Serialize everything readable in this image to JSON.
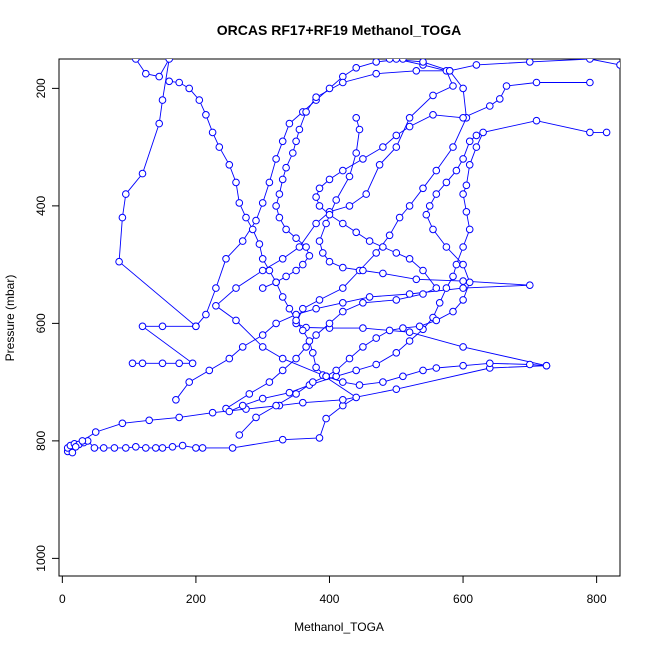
{
  "chart_data": {
    "type": "line",
    "title": "ORCAS RF17+RF19 Methanol_TOGA",
    "xlabel": "Methanol_TOGA",
    "ylabel": "Pressure (mbar)",
    "xlim": [
      -5,
      835
    ],
    "ylim": [
      1030,
      150
    ],
    "y_reversed": true,
    "x_ticks": [
      0,
      200,
      400,
      600,
      800
    ],
    "y_ticks": [
      200,
      400,
      600,
      800,
      1000
    ],
    "tick_labels_x": [
      "0",
      "200",
      "400",
      "600",
      "800"
    ],
    "tick_labels_y": [
      "200",
      "400",
      "600",
      "800",
      "1000"
    ],
    "grid": false,
    "colors": {
      "series": "#0000ff"
    },
    "series": [
      {
        "values": [
          [
            8,
            818
          ],
          [
            8,
            812
          ],
          [
            12,
            808
          ],
          [
            18,
            805
          ],
          [
            25,
            806
          ],
          [
            32,
            803
          ],
          [
            38,
            800
          ],
          [
            48,
            812
          ],
          [
            62,
            812
          ],
          [
            78,
            812
          ],
          [
            95,
            812
          ],
          [
            110,
            810
          ],
          [
            125,
            812
          ],
          [
            140,
            812
          ],
          [
            150,
            812
          ],
          [
            165,
            810
          ],
          [
            180,
            808
          ],
          [
            200,
            812
          ],
          [
            210,
            812
          ],
          [
            255,
            812
          ],
          [
            330,
            798
          ],
          [
            385,
            795
          ],
          [
            395,
            762
          ],
          [
            420,
            740
          ],
          [
            440,
            726
          ],
          [
            390,
            688
          ],
          [
            330,
            660
          ],
          [
            300,
            640
          ],
          [
            260,
            595
          ],
          [
            230,
            570
          ],
          [
            260,
            540
          ],
          [
            300,
            510
          ],
          [
            330,
            490
          ],
          [
            355,
            470
          ],
          [
            380,
            430
          ],
          [
            400,
            410
          ],
          [
            430,
            400
          ],
          [
            455,
            380
          ],
          [
            475,
            330
          ],
          [
            500,
            300
          ],
          [
            520,
            250
          ],
          [
            555,
            212
          ],
          [
            585,
            196
          ],
          [
            575,
            170
          ],
          [
            540,
            160
          ],
          [
            500,
            150
          ]
        ]
      },
      {
        "values": [
          [
            15,
            820
          ],
          [
            20,
            810
          ],
          [
            30,
            800
          ],
          [
            50,
            785
          ],
          [
            90,
            770
          ],
          [
            130,
            765
          ],
          [
            175,
            760
          ],
          [
            225,
            752
          ],
          [
            275,
            746
          ],
          [
            325,
            740
          ],
          [
            360,
            735
          ],
          [
            420,
            730
          ],
          [
            500,
            712
          ],
          [
            640,
            676
          ],
          [
            725,
            672
          ],
          [
            600,
            640
          ],
          [
            520,
            615
          ],
          [
            450,
            608
          ],
          [
            400,
            608
          ],
          [
            365,
            607
          ],
          [
            350,
            600
          ],
          [
            360,
            575
          ],
          [
            385,
            560
          ],
          [
            420,
            540
          ],
          [
            445,
            510
          ],
          [
            470,
            480
          ],
          [
            490,
            450
          ],
          [
            505,
            420
          ],
          [
            520,
            400
          ],
          [
            540,
            370
          ],
          [
            560,
            340
          ],
          [
            585,
            300
          ],
          [
            605,
            250
          ],
          [
            600,
            200
          ],
          [
            580,
            170
          ],
          [
            540,
            155
          ],
          [
            490,
            150
          ]
        ]
      },
      {
        "values": [
          [
            105,
            668
          ],
          [
            120,
            668
          ],
          [
            150,
            668
          ],
          [
            175,
            668
          ],
          [
            195,
            668
          ],
          [
            120,
            605
          ],
          [
            150,
            605
          ],
          [
            200,
            605
          ],
          [
            85,
            495
          ],
          [
            90,
            420
          ],
          [
            95,
            380
          ],
          [
            120,
            345
          ],
          [
            145,
            260
          ],
          [
            150,
            220
          ],
          [
            160,
            150
          ],
          [
            145,
            180
          ],
          [
            125,
            175
          ],
          [
            110,
            150
          ]
        ]
      },
      {
        "values": [
          [
            200,
            605
          ],
          [
            215,
            585
          ],
          [
            230,
            540
          ],
          [
            245,
            490
          ],
          [
            270,
            460
          ],
          [
            290,
            425
          ],
          [
            300,
            395
          ],
          [
            310,
            360
          ],
          [
            320,
            320
          ],
          [
            330,
            290
          ],
          [
            340,
            260
          ],
          [
            360,
            240
          ],
          [
            380,
            220
          ],
          [
            400,
            200
          ],
          [
            420,
            180
          ],
          [
            440,
            165
          ],
          [
            470,
            155
          ],
          [
            510,
            150
          ]
        ]
      },
      {
        "values": [
          [
            170,
            730
          ],
          [
            190,
            700
          ],
          [
            220,
            680
          ],
          [
            250,
            660
          ],
          [
            270,
            640
          ],
          [
            300,
            620
          ],
          [
            320,
            600
          ],
          [
            350,
            585
          ],
          [
            380,
            575
          ],
          [
            420,
            565
          ],
          [
            460,
            555
          ],
          [
            520,
            550
          ],
          [
            600,
            540
          ],
          [
            700,
            535
          ],
          [
            600,
            528
          ],
          [
            530,
            525
          ],
          [
            480,
            515
          ],
          [
            450,
            510
          ],
          [
            420,
            505
          ],
          [
            400,
            495
          ],
          [
            390,
            480
          ],
          [
            385,
            460
          ],
          [
            395,
            430
          ],
          [
            410,
            390
          ],
          [
            430,
            350
          ],
          [
            440,
            310
          ],
          [
            445,
            270
          ],
          [
            440,
            250
          ]
        ]
      },
      {
        "values": [
          [
            245,
            745
          ],
          [
            280,
            720
          ],
          [
            310,
            700
          ],
          [
            330,
            680
          ],
          [
            350,
            660
          ],
          [
            365,
            640
          ],
          [
            380,
            620
          ],
          [
            400,
            600
          ],
          [
            420,
            580
          ],
          [
            450,
            565
          ],
          [
            500,
            560
          ],
          [
            540,
            550
          ],
          [
            560,
            540
          ],
          [
            540,
            510
          ],
          [
            520,
            490
          ],
          [
            500,
            480
          ],
          [
            480,
            470
          ],
          [
            460,
            460
          ],
          [
            440,
            445
          ],
          [
            420,
            430
          ],
          [
            400,
            415
          ],
          [
            385,
            400
          ],
          [
            380,
            385
          ],
          [
            385,
            370
          ],
          [
            400,
            355
          ],
          [
            420,
            340
          ],
          [
            450,
            320
          ],
          [
            480,
            300
          ],
          [
            500,
            280
          ],
          [
            520,
            265
          ],
          [
            555,
            245
          ],
          [
            600,
            250
          ],
          [
            640,
            230
          ],
          [
            655,
            218
          ],
          [
            665,
            196
          ],
          [
            710,
            190
          ],
          [
            790,
            190
          ]
        ]
      },
      {
        "values": [
          [
            250,
            750
          ],
          [
            270,
            740
          ],
          [
            300,
            728
          ],
          [
            340,
            718
          ],
          [
            370,
            705
          ],
          [
            410,
            690
          ],
          [
            440,
            680
          ],
          [
            470,
            670
          ],
          [
            500,
            650
          ],
          [
            520,
            630
          ],
          [
            540,
            610
          ],
          [
            555,
            590
          ],
          [
            565,
            565
          ],
          [
            575,
            540
          ],
          [
            585,
            520
          ],
          [
            590,
            500
          ],
          [
            600,
            470
          ],
          [
            610,
            440
          ],
          [
            605,
            410
          ],
          [
            600,
            380
          ],
          [
            605,
            365
          ],
          [
            610,
            330
          ],
          [
            620,
            300
          ],
          [
            630,
            275
          ],
          [
            710,
            255
          ],
          [
            790,
            275
          ],
          [
            815,
            275
          ]
        ]
      },
      {
        "values": [
          [
            265,
            790
          ],
          [
            290,
            760
          ],
          [
            320,
            740
          ],
          [
            350,
            720
          ],
          [
            375,
            700
          ],
          [
            395,
            690
          ],
          [
            410,
            680
          ],
          [
            430,
            660
          ],
          [
            450,
            640
          ],
          [
            470,
            625
          ],
          [
            490,
            612
          ],
          [
            510,
            608
          ],
          [
            535,
            605
          ],
          [
            560,
            595
          ],
          [
            585,
            580
          ],
          [
            600,
            560
          ],
          [
            610,
            530
          ],
          [
            600,
            500
          ],
          [
            575,
            470
          ],
          [
            555,
            440
          ],
          [
            545,
            415
          ],
          [
            550,
            400
          ],
          [
            560,
            380
          ],
          [
            575,
            360
          ],
          [
            590,
            340
          ],
          [
            600,
            320
          ],
          [
            610,
            290
          ],
          [
            620,
            280
          ]
        ]
      },
      {
        "values": [
          [
            300,
            540
          ],
          [
            320,
            530
          ],
          [
            335,
            520
          ],
          [
            350,
            510
          ],
          [
            360,
            500
          ],
          [
            370,
            485
          ],
          [
            365,
            470
          ],
          [
            350,
            455
          ],
          [
            335,
            440
          ],
          [
            325,
            420
          ],
          [
            320,
            400
          ],
          [
            325,
            380
          ],
          [
            330,
            355
          ],
          [
            335,
            335
          ],
          [
            345,
            310
          ],
          [
            350,
            290
          ],
          [
            355,
            270
          ],
          [
            365,
            240
          ],
          [
            380,
            215
          ],
          [
            420,
            190
          ],
          [
            470,
            175
          ],
          [
            530,
            170
          ],
          [
            580,
            170
          ],
          [
            620,
            160
          ],
          [
            700,
            155
          ],
          [
            790,
            150
          ],
          [
            835,
            160
          ]
        ]
      },
      {
        "values": [
          [
            160,
            188
          ],
          [
            175,
            190
          ],
          [
            190,
            200
          ],
          [
            205,
            220
          ],
          [
            215,
            245
          ],
          [
            225,
            275
          ],
          [
            235,
            300
          ],
          [
            250,
            330
          ],
          [
            260,
            360
          ],
          [
            265,
            395
          ],
          [
            275,
            420
          ],
          [
            285,
            440
          ],
          [
            295,
            465
          ],
          [
            300,
            490
          ],
          [
            310,
            510
          ],
          [
            320,
            530
          ],
          [
            330,
            555
          ],
          [
            340,
            575
          ],
          [
            350,
            595
          ],
          [
            360,
            612
          ],
          [
            370,
            630
          ],
          [
            375,
            650
          ],
          [
            380,
            675
          ],
          [
            395,
            690
          ],
          [
            420,
            700
          ],
          [
            445,
            705
          ],
          [
            480,
            700
          ],
          [
            510,
            690
          ],
          [
            540,
            680
          ],
          [
            560,
            676
          ],
          [
            600,
            672
          ],
          [
            640,
            668
          ],
          [
            700,
            670
          ],
          [
            725,
            672
          ]
        ]
      }
    ]
  }
}
